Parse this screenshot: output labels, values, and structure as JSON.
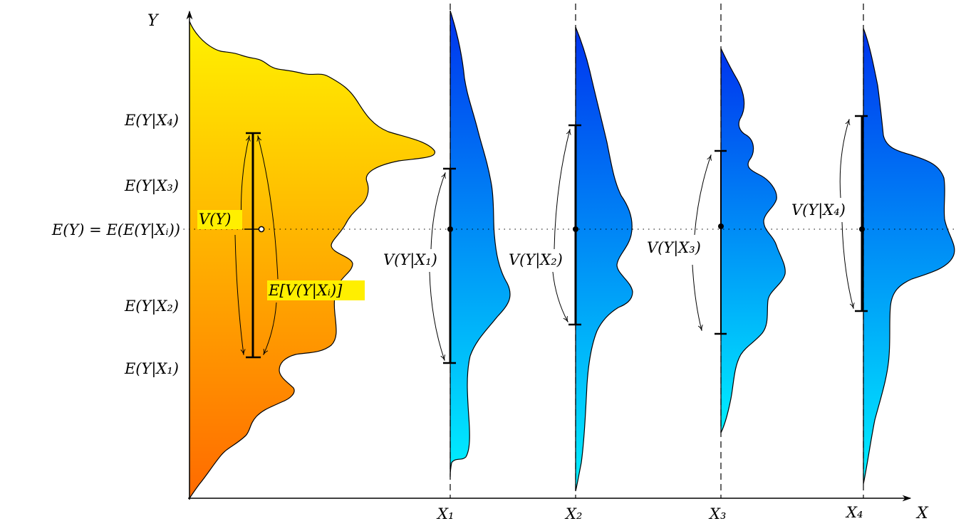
{
  "axes": {
    "y_label": "Y",
    "x_label": "X"
  },
  "x_ticks": [
    "X₁",
    "X₂",
    "X₃",
    "X₄"
  ],
  "y_ticks": {
    "e4": "E(Y|X₄)",
    "e3": "E(Y|X₃)",
    "ey": "E(Y) = E(E(Y|Xᵢ))",
    "e2": "E(Y|X₂)",
    "e1": "E(Y|X₁)"
  },
  "annotations": {
    "vy": "V(Y)",
    "ev": "E[V(Y|Xᵢ)]",
    "v1": "V(Y|X₁)",
    "v2": "V(Y|X₂)",
    "v3": "V(Y|X₃)",
    "v4": "V(Y|X₄)"
  },
  "colors": {
    "marginal_top": "#fff200",
    "marginal_bottom": "#ff6a00",
    "conditional_top": "#0033ee",
    "conditional_bottom": "#00eeff",
    "label_highlight": "#ffef00"
  }
}
